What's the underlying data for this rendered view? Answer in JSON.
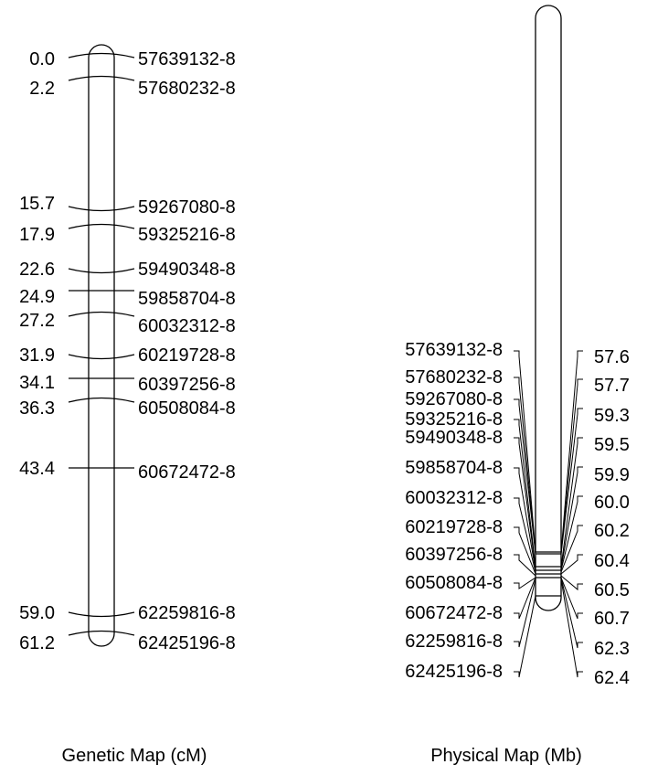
{
  "genetic_map": {
    "caption": "Genetic Map (cM)",
    "markers": [
      {
        "position": "0.0",
        "marker": "57639132-8"
      },
      {
        "position": "2.2",
        "marker": "57680232-8"
      },
      {
        "position": "15.7",
        "marker": "59267080-8"
      },
      {
        "position": "17.9",
        "marker": "59325216-8"
      },
      {
        "position": "22.6",
        "marker": "59490348-8"
      },
      {
        "position": "24.9",
        "marker": "59858704-8"
      },
      {
        "position": "27.2",
        "marker": "60032312-8"
      },
      {
        "position": "31.9",
        "marker": "60219728-8"
      },
      {
        "position": "34.1",
        "marker": "60397256-8"
      },
      {
        "position": "36.3",
        "marker": "60508084-8"
      },
      {
        "position": "43.4",
        "marker": "60672472-8"
      },
      {
        "position": "59.0",
        "marker": "62259816-8"
      },
      {
        "position": "61.2",
        "marker": "62425196-8"
      }
    ]
  },
  "physical_map": {
    "caption": "Physical Map (Mb)",
    "markers": [
      {
        "marker": "57639132-8",
        "position": "57.6"
      },
      {
        "marker": "57680232-8",
        "position": "57.7"
      },
      {
        "marker": "59267080-8",
        "position": "59.3"
      },
      {
        "marker": "59325216-8",
        "position": "59.5"
      },
      {
        "marker": "59490348-8",
        "position": "59.9"
      },
      {
        "marker": "59858704-8",
        "position": "60.0"
      },
      {
        "marker": "60032312-8",
        "position": "60.2"
      },
      {
        "marker": "60219728-8",
        "position": "60.4"
      },
      {
        "marker": "60397256-8",
        "position": "60.5"
      },
      {
        "marker": "60508084-8",
        "position": "60.7"
      },
      {
        "marker": "60672472-8",
        "position": "62.3"
      },
      {
        "marker": "62259816-8",
        "position": "62.4"
      },
      {
        "marker": "62425196-8",
        "position": ""
      }
    ]
  }
}
